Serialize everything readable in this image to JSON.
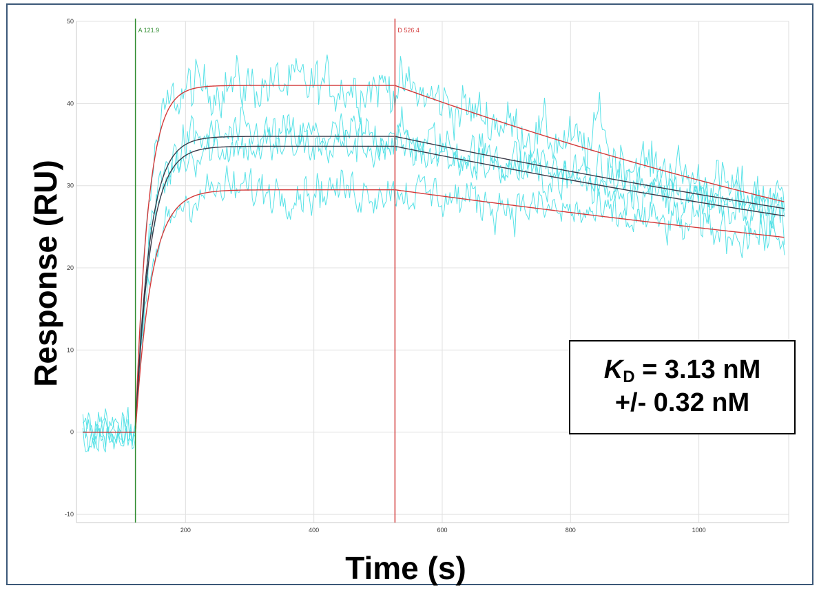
{
  "chart_data": {
    "type": "line",
    "title": "",
    "xlabel": "Time (s)",
    "ylabel": "Response (RU)",
    "xlim": [
      30,
      1140
    ],
    "ylim": [
      -11,
      50
    ],
    "x_ticks": [
      200,
      400,
      600,
      800,
      1000
    ],
    "x_tick_labels": [
      "200",
      "400",
      "600",
      "800",
      "1000"
    ],
    "y_ticks": [
      -10,
      0,
      10,
      20,
      30,
      40,
      50
    ],
    "y_tick_labels": [
      "-10",
      "0",
      "10",
      "20",
      "30",
      "40",
      "50"
    ],
    "grid": true,
    "legend": "none",
    "colors": {
      "data_trace": "#4fe0e6",
      "fit_curve": "#d33a3a",
      "fit_curve_dark": "#3a3a48",
      "association_marker": "#2e8b2e",
      "dissociation_marker": "#d33a3a",
      "grid": "#e0e0e0"
    },
    "markers": [
      {
        "label": "A 121.9",
        "x": 121.9,
        "color": "#2e8b2e"
      },
      {
        "label": "D 526.4",
        "x": 526.4,
        "color": "#d33a3a"
      }
    ],
    "association_start": 121.9,
    "dissociation_start": 526.4,
    "baseline_start": 40,
    "end_time": 1135,
    "series": [
      {
        "plateau": 42.2,
        "kon_rate": 0.052,
        "end_value": 28.0,
        "fit_color": "#d33a3a",
        "noise": 3.2
      },
      {
        "plateau": 36.0,
        "kon_rate": 0.046,
        "end_value": 27.2,
        "fit_color": "#3a3a48",
        "noise": 2.8
      },
      {
        "plateau": 34.8,
        "kon_rate": 0.044,
        "end_value": 26.3,
        "fit_color": "#3a3a48",
        "noise": 2.6
      },
      {
        "plateau": 29.5,
        "kon_rate": 0.04,
        "end_value": 23.7,
        "fit_color": "#d33a3a",
        "noise": 2.6
      }
    ],
    "annotation": {
      "symbol": "K",
      "subscript": "D",
      "line1_rest": " = 3.13 nM",
      "line2": "+/- 0.32 nM"
    }
  }
}
